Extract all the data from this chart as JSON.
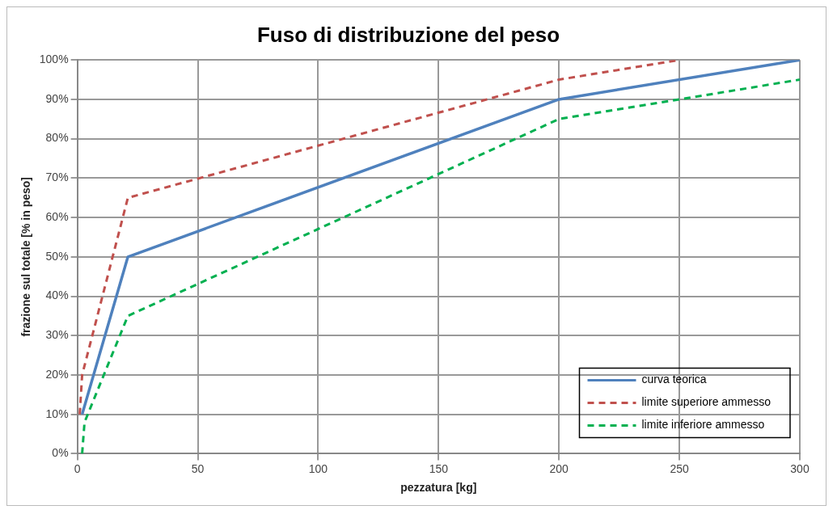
{
  "chart_data": {
    "type": "line",
    "title": "Fuso di distribuzione del peso",
    "xlabel": "pezzatura [kg]",
    "ylabel": "frazione sul totale [% in peso]",
    "xlim": [
      0,
      300
    ],
    "xticks": [
      0,
      50,
      100,
      150,
      200,
      250,
      300
    ],
    "ylim": [
      0,
      100
    ],
    "yticks": [
      {
        "value": 0,
        "label": "0%"
      },
      {
        "value": 10,
        "label": "10%"
      },
      {
        "value": 20,
        "label": "20%"
      },
      {
        "value": 30,
        "label": "30%"
      },
      {
        "value": 40,
        "label": "40%"
      },
      {
        "value": 50,
        "label": "50%"
      },
      {
        "value": 60,
        "label": "60%"
      },
      {
        "value": 70,
        "label": "70%"
      },
      {
        "value": 80,
        "label": "80%"
      },
      {
        "value": 90,
        "label": "90%"
      },
      {
        "value": 100,
        "label": "100%"
      }
    ],
    "grid": true,
    "legend": "bottom right",
    "marker": "none",
    "series": [
      {
        "name": "curva teorica",
        "color": "#4f81bd",
        "line_style": "solid",
        "x": [
          2,
          21,
          200,
          300
        ],
        "values": [
          10,
          50,
          90,
          100
        ]
      },
      {
        "name": "limite superiore ammesso",
        "color": "#c0504d",
        "line_style": "dashed",
        "x": [
          1,
          2,
          21,
          200,
          250
        ],
        "values": [
          10,
          20,
          65,
          95,
          100
        ]
      },
      {
        "name": "limite inferiore ammesso",
        "color": "#00b050",
        "line_style": "dashed",
        "x": [
          2,
          3,
          21,
          200,
          250,
          300
        ],
        "values": [
          0,
          8,
          35,
          85,
          90,
          95
        ]
      }
    ]
  }
}
